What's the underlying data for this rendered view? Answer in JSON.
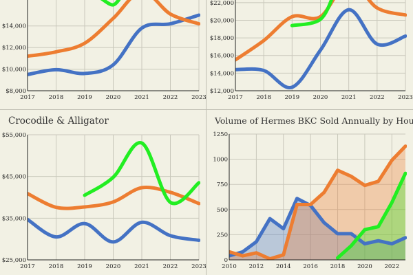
{
  "colors": {
    "blue": "#4472c4",
    "orange": "#ed7d31",
    "green": "#22ee22",
    "grid": "#c9c8bb",
    "axis": "#222222",
    "bg": "#f2f1e4"
  },
  "chart_data": [
    {
      "id": "tl",
      "type": "line",
      "title": "",
      "x": [
        2017,
        2018,
        2019,
        2020,
        2021,
        2022,
        2023
      ],
      "xlim": [
        2017,
        2023
      ],
      "ylim": [
        8000,
        16400
      ],
      "yticks": [
        8000,
        10000,
        12000,
        14000
      ],
      "ytick_labels": [
        "$8,000",
        "$10,000",
        "$12,000",
        "$14,000"
      ],
      "grid": true,
      "series": [
        {
          "color": "blue",
          "values": [
            9500,
            9950,
            9600,
            10400,
            13800,
            14200,
            15000
          ]
        },
        {
          "color": "orange",
          "values": [
            11200,
            11600,
            12400,
            14700,
            17200,
            15100,
            14200
          ]
        },
        {
          "color": "green",
          "x": [
            2019.6,
            2020.0,
            2020.3
          ],
          "values": [
            16500,
            15950,
            16800
          ]
        }
      ]
    },
    {
      "id": "tr",
      "type": "line",
      "title": "",
      "x": [
        2017,
        2018,
        2019,
        2020,
        2021,
        2022,
        2023
      ],
      "xlim": [
        2017,
        2023
      ],
      "ylim": [
        12000,
        22300
      ],
      "yticks": [
        12000,
        14000,
        16000,
        18000,
        20000,
        22000
      ],
      "ytick_labels": [
        "$12,000",
        "$14,000",
        "$16,000",
        "$18,000",
        "$20,000",
        "$22,000"
      ],
      "grid": true,
      "series": [
        {
          "color": "blue",
          "values": [
            14400,
            14300,
            12400,
            16600,
            21200,
            17300,
            18200
          ]
        },
        {
          "color": "orange",
          "values": [
            15500,
            17700,
            20400,
            20400,
            24400,
            21400,
            20600
          ]
        },
        {
          "color": "green",
          "x": [
            2019,
            2020,
            2020.5
          ],
          "values": [
            19400,
            20100,
            23200
          ]
        }
      ]
    },
    {
      "id": "bl",
      "type": "line",
      "title": "Crocodile & Alligator",
      "x": [
        2017,
        2018,
        2019,
        2020,
        2021,
        2022,
        2023
      ],
      "xlim": [
        2017,
        2023
      ],
      "ylim": [
        25000,
        55000
      ],
      "yticks": [
        25000,
        35000,
        45000,
        55000
      ],
      "ytick_labels": [
        "$25,000",
        "$35,000",
        "$45,000",
        "$55,000"
      ],
      "grid": true,
      "series": [
        {
          "color": "blue",
          "values": [
            34700,
            30500,
            33700,
            29300,
            34000,
            30800,
            29700
          ]
        },
        {
          "color": "orange",
          "values": [
            40900,
            37600,
            37700,
            38900,
            42300,
            41200,
            38500
          ]
        },
        {
          "color": "green",
          "x": [
            2019,
            2020,
            2021,
            2022,
            2023
          ],
          "values": [
            40500,
            44800,
            53000,
            38800,
            43500
          ]
        }
      ]
    },
    {
      "id": "br",
      "type": "area",
      "title": "Volume of Hermes BKC Sold Annually by House",
      "x": [
        2010,
        2011,
        2012,
        2013,
        2014,
        2015,
        2016,
        2017,
        2018,
        2019,
        2020,
        2021,
        2022,
        2023
      ],
      "xlim": [
        2010,
        2023
      ],
      "ylim": [
        0,
        1250
      ],
      "yticks": [
        0,
        250,
        500,
        750,
        1000,
        1250
      ],
      "ytick_labels": [
        "0",
        "250",
        "500",
        "750",
        "1000",
        "1250"
      ],
      "xticks": [
        2010,
        2012,
        2014,
        2016,
        2018,
        2020,
        2022
      ],
      "xtick_labels": [
        "2010",
        "2012",
        "2014",
        "2016",
        "2018",
        "2020",
        "2022"
      ],
      "grid": true,
      "series": [
        {
          "color": "blue",
          "values": [
            40,
            80,
            180,
            410,
            310,
            610,
            540,
            370,
            260,
            260,
            160,
            190,
            160,
            220
          ]
        },
        {
          "color": "orange",
          "values": [
            80,
            40,
            70,
            10,
            50,
            550,
            550,
            670,
            890,
            830,
            740,
            780,
            990,
            1130
          ]
        },
        {
          "color": "green",
          "x": [
            2018,
            2019,
            2020,
            2021,
            2022,
            2023
          ],
          "values": [
            20,
            140,
            300,
            330,
            570,
            860
          ]
        }
      ]
    }
  ]
}
